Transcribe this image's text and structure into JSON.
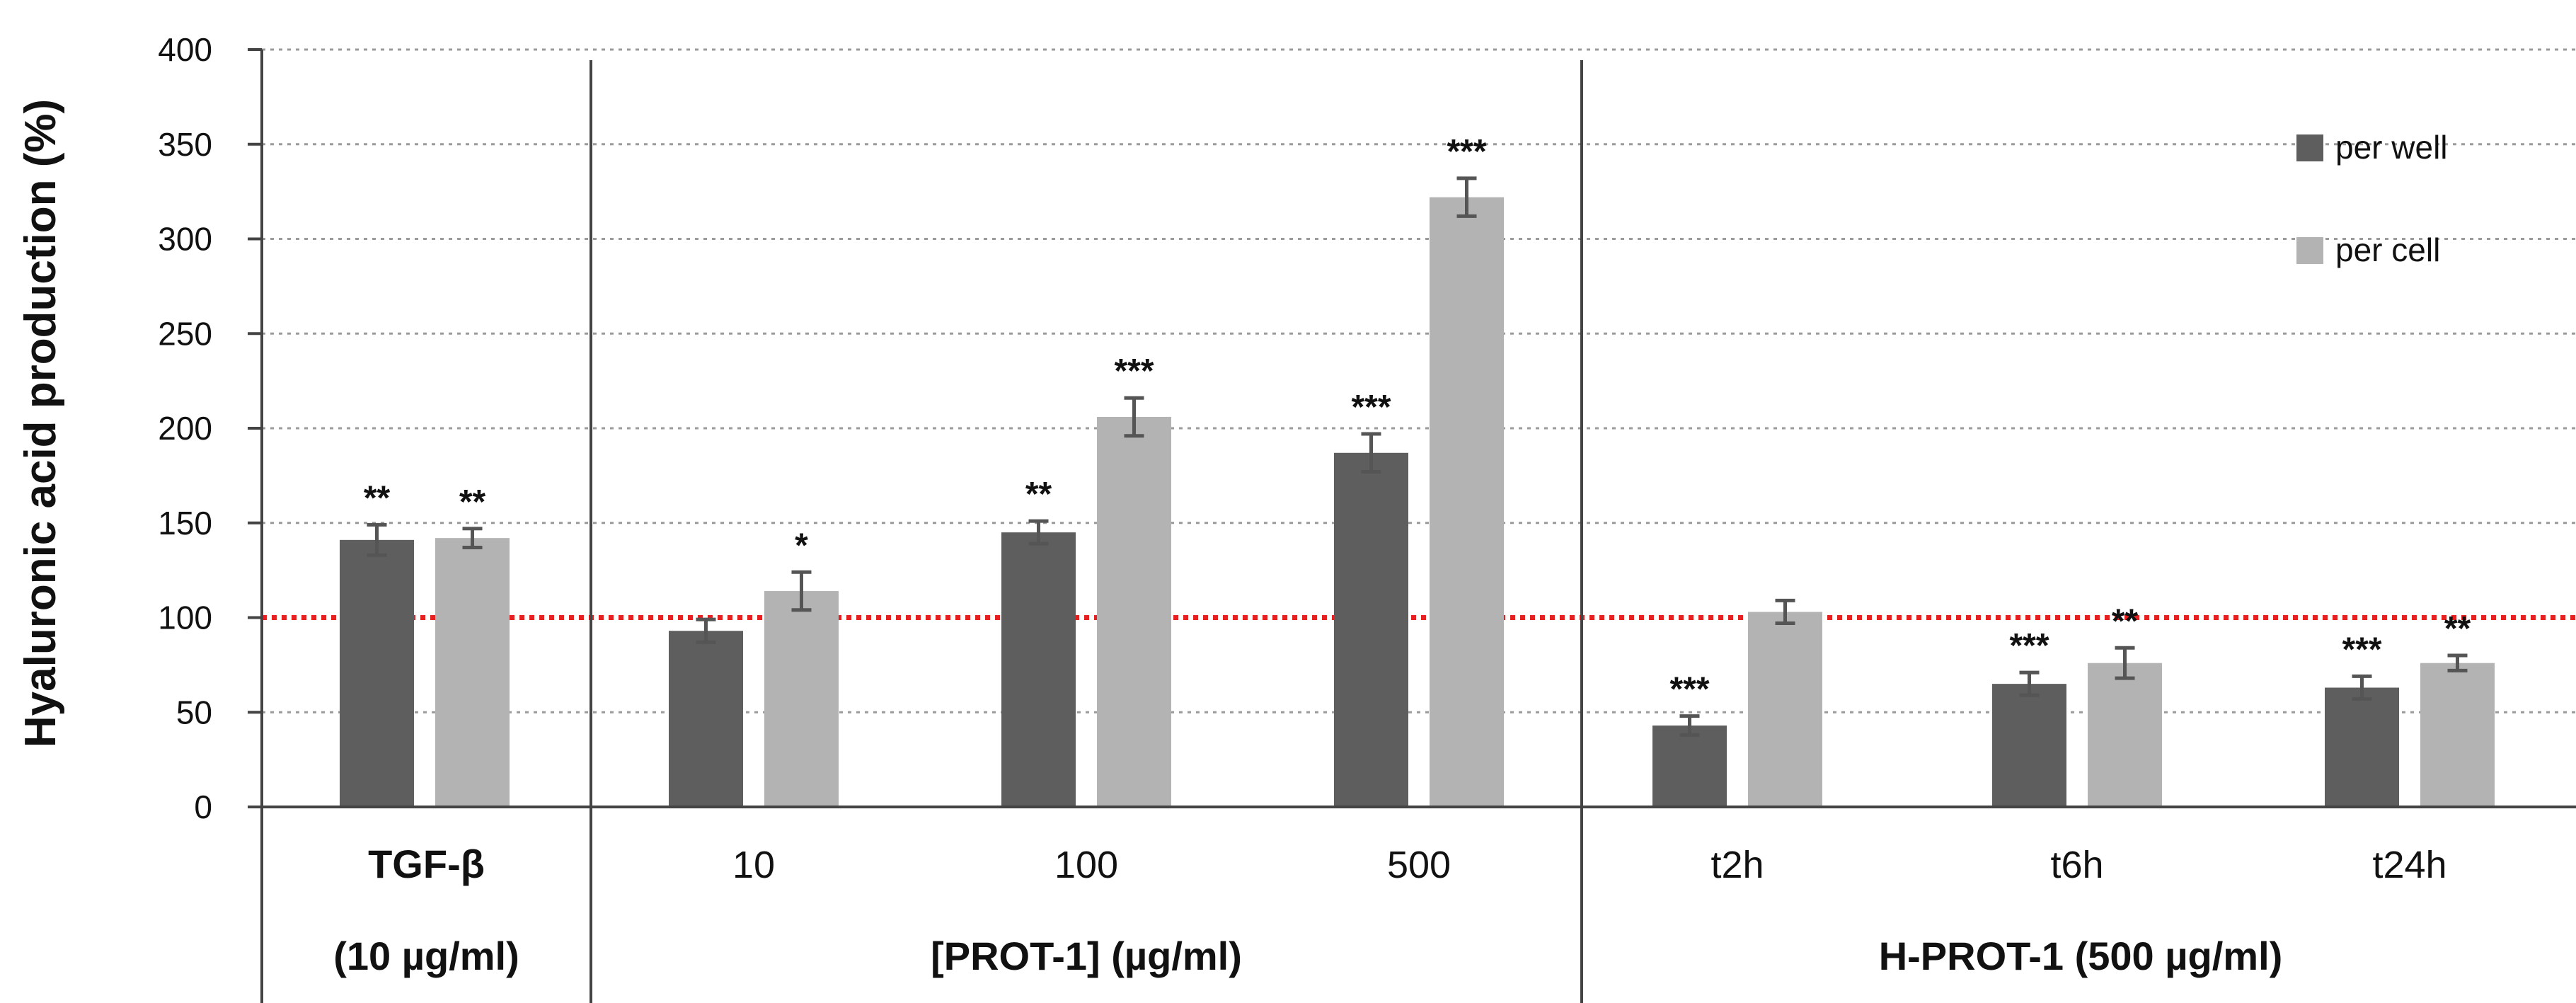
{
  "chart_data": {
    "type": "bar",
    "ylabel": "Hyaluronic acid production (%)",
    "ylim": [
      0,
      400
    ],
    "yticks": [
      "0",
      "50",
      "100",
      "150",
      "200",
      "250",
      "300",
      "350",
      "400"
    ],
    "reference_line": {
      "value": 100,
      "color": "#e52020",
      "style": "dotted"
    },
    "grid": true,
    "legend_position": "top-right",
    "categories": [
      "TGF-β",
      "10",
      "100",
      "500",
      "t2h",
      "t6h",
      "t24h"
    ],
    "groups": [
      {
        "line1": "TGF-β",
        "line2": "(10 µg/ml)",
        "categories": [
          "TGF-β"
        ]
      },
      {
        "line1": "",
        "line2": "[PROT-1] (µg/ml)",
        "categories": [
          "10",
          "100",
          "500"
        ]
      },
      {
        "line1": "",
        "line2": "H-PROT-1 (500 µg/ml)",
        "categories": [
          "t2h",
          "t6h",
          "t24h"
        ]
      }
    ],
    "category_labels": [
      "",
      "10",
      "100",
      "500",
      "t2h",
      "t6h",
      "t24h"
    ],
    "series": [
      {
        "name": "per well",
        "color": "#5e5e5e",
        "values": [
          141,
          93,
          145,
          187,
          43,
          65,
          63
        ],
        "errors": [
          8,
          6,
          6,
          10,
          5,
          6,
          6
        ],
        "significance": [
          "**",
          "",
          "**",
          "***",
          "***",
          "***",
          "***"
        ]
      },
      {
        "name": "per cell",
        "color": "#b3b3b3",
        "values": [
          142,
          114,
          206,
          322,
          103,
          76,
          76
        ],
        "errors": [
          5,
          10,
          10,
          10,
          6,
          8,
          4
        ],
        "significance": [
          "**",
          "*",
          "***",
          "***",
          "",
          "**",
          "**"
        ]
      }
    ]
  }
}
